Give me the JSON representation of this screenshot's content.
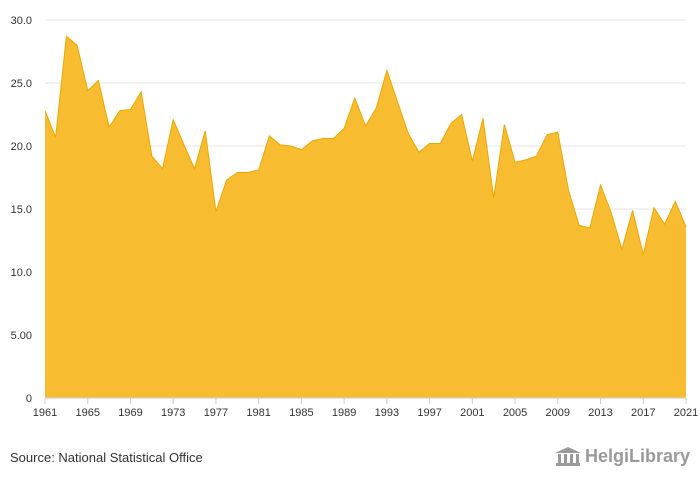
{
  "chart_data": {
    "type": "area",
    "title": "",
    "xlabel": "",
    "ylabel": "",
    "x": [
      1961,
      1962,
      1963,
      1964,
      1965,
      1966,
      1967,
      1968,
      1969,
      1970,
      1971,
      1972,
      1973,
      1974,
      1975,
      1976,
      1977,
      1978,
      1979,
      1980,
      1981,
      1982,
      1983,
      1984,
      1985,
      1986,
      1987,
      1988,
      1989,
      1990,
      1991,
      1992,
      1993,
      1994,
      1995,
      1996,
      1997,
      1998,
      1999,
      2000,
      2001,
      2002,
      2003,
      2004,
      2005,
      2006,
      2007,
      2008,
      2009,
      2010,
      2011,
      2012,
      2013,
      2014,
      2015,
      2016,
      2017,
      2018,
      2019,
      2020,
      2021
    ],
    "values": [
      22.8,
      20.7,
      28.7,
      28.0,
      24.4,
      25.2,
      21.5,
      22.8,
      22.9,
      24.3,
      19.2,
      18.2,
      22.1,
      20.1,
      18.2,
      21.2,
      14.8,
      17.3,
      17.9,
      17.9,
      18.1,
      20.8,
      20.1,
      20.0,
      19.7,
      20.4,
      20.6,
      20.6,
      21.4,
      23.8,
      21.6,
      23.0,
      26.0,
      23.5,
      21.0,
      19.5,
      20.2,
      20.2,
      21.8,
      22.5,
      18.8,
      22.2,
      15.9,
      21.7,
      18.7,
      18.9,
      19.2,
      20.9,
      21.1,
      16.5,
      13.7,
      13.5,
      16.9,
      14.7,
      11.8,
      14.9,
      11.4,
      15.1,
      13.8,
      15.6,
      13.6
    ],
    "x_ticks": [
      "1961",
      "1965",
      "1969",
      "1973",
      "1977",
      "1981",
      "1985",
      "1989",
      "1993",
      "1997",
      "2001",
      "2005",
      "2009",
      "2013",
      "2017",
      "2021"
    ],
    "y_ticks": [
      "0",
      "5.00",
      "10.0",
      "15.0",
      "20.0",
      "25.0",
      "30.0"
    ],
    "ylim": [
      0,
      30
    ],
    "grid": true,
    "fill_color": "#f8bc30",
    "line_color": "#e9a800"
  },
  "footer": {
    "source": "Source: National Statistical Office",
    "logo_text": "HelgiLibrary"
  }
}
